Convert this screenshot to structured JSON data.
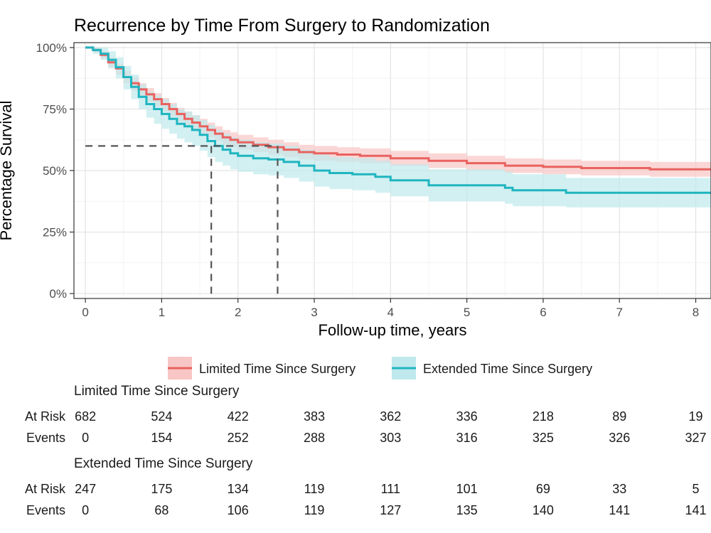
{
  "chart_data": {
    "type": "line",
    "title": "Recurrence by Time From Surgery to Randomization",
    "xlabel": "Follow-up time, years",
    "ylabel": "Percentage Survival",
    "xlim": [
      -0.15,
      8.2
    ],
    "ylim": [
      -0.02,
      1.02
    ],
    "x_ticks": [
      0,
      1,
      2,
      3,
      4,
      5,
      6,
      7,
      8
    ],
    "x_tick_labels": [
      "0",
      "1",
      "2",
      "3",
      "4",
      "5",
      "6",
      "7",
      "8"
    ],
    "y_ticks": [
      0,
      0.25,
      0.5,
      0.75,
      1.0
    ],
    "y_tick_labels": [
      "0%",
      "25%",
      "50%",
      "75%",
      "100%"
    ],
    "grid": true,
    "legend_position": "bottom",
    "series": [
      {
        "name": "Limited Time Since Surgery",
        "color": "#e8625f",
        "fill_color": "#f8c6c4",
        "x": [
          0,
          0.1,
          0.2,
          0.3,
          0.4,
          0.5,
          0.6,
          0.7,
          0.8,
          0.9,
          1.0,
          1.1,
          1.2,
          1.3,
          1.4,
          1.5,
          1.6,
          1.7,
          1.8,
          1.9,
          2.0,
          2.2,
          2.4,
          2.6,
          2.8,
          3.0,
          3.3,
          3.6,
          4.0,
          4.5,
          5.0,
          5.5,
          6.0,
          6.5,
          7.0,
          7.4,
          8.2
        ],
        "y": [
          1.0,
          0.99,
          0.97,
          0.94,
          0.915,
          0.88,
          0.855,
          0.83,
          0.81,
          0.79,
          0.77,
          0.75,
          0.73,
          0.71,
          0.695,
          0.68,
          0.665,
          0.65,
          0.635,
          0.625,
          0.615,
          0.605,
          0.595,
          0.585,
          0.575,
          0.57,
          0.565,
          0.56,
          0.55,
          0.54,
          0.53,
          0.52,
          0.515,
          0.51,
          0.51,
          0.505,
          0.505
        ],
        "lower": [
          1.0,
          0.98,
          0.955,
          0.92,
          0.89,
          0.855,
          0.825,
          0.8,
          0.78,
          0.76,
          0.74,
          0.72,
          0.7,
          0.68,
          0.665,
          0.65,
          0.635,
          0.62,
          0.605,
          0.595,
          0.585,
          0.575,
          0.565,
          0.555,
          0.545,
          0.54,
          0.535,
          0.53,
          0.52,
          0.51,
          0.5,
          0.49,
          0.485,
          0.48,
          0.48,
          0.475,
          0.475
        ],
        "upper": [
          1.0,
          1.0,
          0.985,
          0.96,
          0.935,
          0.905,
          0.88,
          0.855,
          0.835,
          0.815,
          0.795,
          0.775,
          0.755,
          0.74,
          0.725,
          0.71,
          0.695,
          0.68,
          0.665,
          0.655,
          0.645,
          0.635,
          0.625,
          0.615,
          0.605,
          0.6,
          0.595,
          0.59,
          0.58,
          0.57,
          0.56,
          0.55,
          0.545,
          0.54,
          0.54,
          0.535,
          0.535
        ]
      },
      {
        "name": "Extended Time Since Surgery",
        "color": "#1fb5c0",
        "fill_color": "#bfe9ec",
        "x": [
          0,
          0.1,
          0.2,
          0.3,
          0.4,
          0.5,
          0.6,
          0.7,
          0.8,
          0.9,
          1.0,
          1.1,
          1.2,
          1.3,
          1.4,
          1.5,
          1.6,
          1.7,
          1.8,
          1.9,
          2.0,
          2.2,
          2.4,
          2.6,
          2.8,
          3.0,
          3.2,
          3.5,
          3.8,
          4.0,
          4.5,
          5.0,
          5.5,
          5.6,
          6.0,
          6.3,
          7.0,
          8.2
        ],
        "y": [
          1.0,
          0.99,
          0.975,
          0.95,
          0.92,
          0.88,
          0.84,
          0.8,
          0.77,
          0.75,
          0.73,
          0.71,
          0.69,
          0.68,
          0.665,
          0.645,
          0.62,
          0.6,
          0.585,
          0.57,
          0.56,
          0.55,
          0.545,
          0.535,
          0.52,
          0.5,
          0.49,
          0.485,
          0.475,
          0.46,
          0.44,
          0.44,
          0.43,
          0.42,
          0.42,
          0.41,
          0.41,
          0.41
        ],
        "lower": [
          1.0,
          0.975,
          0.95,
          0.915,
          0.875,
          0.83,
          0.79,
          0.75,
          0.715,
          0.69,
          0.67,
          0.65,
          0.63,
          0.615,
          0.6,
          0.58,
          0.555,
          0.535,
          0.52,
          0.505,
          0.495,
          0.485,
          0.48,
          0.47,
          0.455,
          0.435,
          0.425,
          0.42,
          0.41,
          0.395,
          0.375,
          0.375,
          0.365,
          0.355,
          0.355,
          0.35,
          0.35,
          0.35
        ],
        "upper": [
          1.0,
          1.0,
          1.0,
          0.985,
          0.96,
          0.925,
          0.89,
          0.85,
          0.82,
          0.805,
          0.79,
          0.77,
          0.75,
          0.74,
          0.725,
          0.705,
          0.685,
          0.665,
          0.65,
          0.635,
          0.625,
          0.615,
          0.61,
          0.6,
          0.585,
          0.565,
          0.555,
          0.55,
          0.54,
          0.525,
          0.505,
          0.505,
          0.495,
          0.485,
          0.485,
          0.47,
          0.47,
          0.47
        ]
      }
    ],
    "reference_lines": {
      "y": 0.6,
      "x_values": [
        1.65,
        2.52
      ]
    },
    "risk_table": {
      "time_points": [
        0,
        1,
        2,
        3,
        4,
        5,
        6,
        7,
        8
      ],
      "groups": [
        {
          "title": "Limited Time Since Surgery",
          "rows": [
            {
              "label": "At Risk",
              "values": [
                "682",
                "524",
                "422",
                "383",
                "362",
                "336",
                "218",
                "89",
                "19"
              ]
            },
            {
              "label": "Events",
              "values": [
                "0",
                "154",
                "252",
                "288",
                "303",
                "316",
                "325",
                "326",
                "327"
              ]
            }
          ]
        },
        {
          "title": "Extended Time Since Surgery",
          "rows": [
            {
              "label": "At Risk",
              "values": [
                "247",
                "175",
                "134",
                "119",
                "111",
                "101",
                "69",
                "33",
                "5"
              ]
            },
            {
              "label": "Events",
              "values": [
                "0",
                "68",
                "106",
                "119",
                "127",
                "135",
                "140",
                "141",
                "141"
              ]
            }
          ]
        }
      ]
    }
  }
}
